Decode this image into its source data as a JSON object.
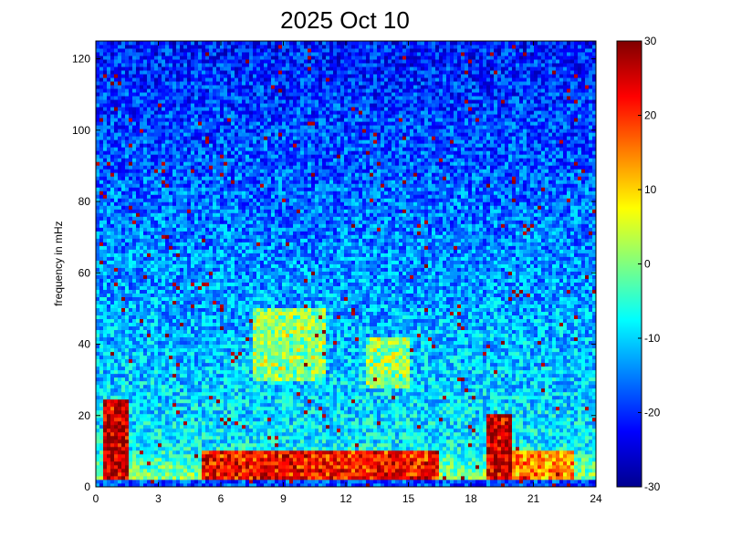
{
  "chart_data": {
    "type": "heatmap",
    "title": "2025 Oct 10",
    "xlabel": "",
    "ylabel": "frequency in mHz",
    "xlim": [
      0,
      24
    ],
    "ylim": [
      0,
      125
    ],
    "x_ticks": [
      "0",
      "3",
      "6",
      "9",
      "12",
      "15",
      "18",
      "21",
      "24"
    ],
    "y_ticks": [
      "0",
      "20",
      "40",
      "60",
      "80",
      "100",
      "120"
    ],
    "colorbar": {
      "range": [
        -30,
        30
      ],
      "ticks": [
        "30",
        "20",
        "10",
        "0",
        "-10",
        "-20",
        "-30"
      ],
      "colormap": "jet"
    },
    "grid": false,
    "features": [
      {
        "x_range": [
          0.3,
          1.5
        ],
        "y_range": [
          0,
          25
        ],
        "level": 28
      },
      {
        "x_range": [
          5,
          16.5
        ],
        "y_range": [
          2,
          10
        ],
        "level": 24
      },
      {
        "x_range": [
          18.8,
          20
        ],
        "y_range": [
          0,
          20
        ],
        "level": 28
      },
      {
        "x_range": [
          20,
          23
        ],
        "y_range": [
          2,
          10
        ],
        "level": 16
      },
      {
        "x_range": [
          7.5,
          11
        ],
        "y_range": [
          30,
          50
        ],
        "level": 3
      },
      {
        "x_range": [
          13,
          15
        ],
        "y_range": [
          28,
          42
        ],
        "level": 3
      }
    ]
  }
}
